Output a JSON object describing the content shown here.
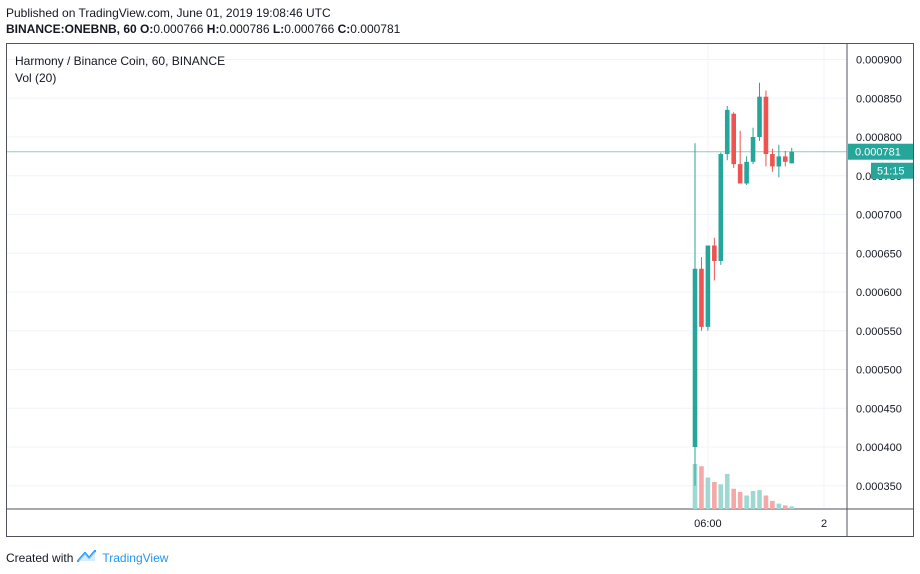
{
  "header": {
    "published": "Published on TradingView.com, June 01, 2019 19:08:46 UTC",
    "symbol": "BINANCE:ONEBNB, 60",
    "o_label": "O:",
    "o": "0.000766",
    "h_label": "H:",
    "h": "0.000786",
    "l_label": "L:",
    "l": "0.000766",
    "c_label": "C:",
    "c": "0.000781",
    "price": "0.000781"
  },
  "footer": {
    "created_with": "Created with",
    "brand": "TradingView"
  },
  "colors": {
    "up": "#26a69a",
    "down": "#ef5350",
    "vol_up": "#9fd8d2",
    "vol_down": "#f6a8a7",
    "grid": "#f0f3fa",
    "axis": "#50535e"
  },
  "chart_data": {
    "type": "candlestick",
    "title": "Harmony / Binance Coin, 60, BINANCE",
    "volume_label": "Vol (20)",
    "ylim": [
      0.00032,
      0.00092
    ],
    "y_ticks": [
      "0.000350",
      "0.000400",
      "0.000450",
      "0.000500",
      "0.000550",
      "0.000600",
      "0.000650",
      "0.000700",
      "0.000750",
      "0.000800",
      "0.000850",
      "0.000900"
    ],
    "x_ticks": [
      {
        "label": "06:00",
        "index": 2
      },
      {
        "label": "2",
        "index": 20
      }
    ],
    "last_price_label": "0.000781",
    "countdown_label": "51:15",
    "candles": [
      {
        "o": 0.0004,
        "h": 0.000792,
        "l": 0.00035,
        "c": 0.00063
      },
      {
        "o": 0.00063,
        "h": 0.000645,
        "l": 0.00055,
        "c": 0.000555
      },
      {
        "o": 0.000555,
        "h": 0.00066,
        "l": 0.00055,
        "c": 0.00066
      },
      {
        "o": 0.00066,
        "h": 0.00067,
        "l": 0.000615,
        "c": 0.00064
      },
      {
        "o": 0.00064,
        "h": 0.00078,
        "l": 0.000635,
        "c": 0.000778
      },
      {
        "o": 0.000778,
        "h": 0.00084,
        "l": 0.00077,
        "c": 0.000835
      },
      {
        "o": 0.00083,
        "h": 0.000832,
        "l": 0.00076,
        "c": 0.000765
      },
      {
        "o": 0.000765,
        "h": 0.000808,
        "l": 0.00074,
        "c": 0.00074
      },
      {
        "o": 0.00074,
        "h": 0.000775,
        "l": 0.000738,
        "c": 0.000768
      },
      {
        "o": 0.000768,
        "h": 0.000812,
        "l": 0.000765,
        "c": 0.0008
      },
      {
        "o": 0.0008,
        "h": 0.00087,
        "l": 0.000795,
        "c": 0.000852
      },
      {
        "o": 0.000852,
        "h": 0.00086,
        "l": 0.000762,
        "c": 0.000778
      },
      {
        "o": 0.000778,
        "h": 0.000785,
        "l": 0.000755,
        "c": 0.000762
      },
      {
        "o": 0.000762,
        "h": 0.00079,
        "l": 0.000748,
        "c": 0.000775
      },
      {
        "o": 0.000775,
        "h": 0.000782,
        "l": 0.000762,
        "c": 0.000768
      },
      {
        "o": 0.000766,
        "h": 0.000786,
        "l": 0.000766,
        "c": 0.000781
      }
    ],
    "volume": [
      100,
      95,
      70,
      60,
      55,
      78,
      45,
      38,
      30,
      40,
      42,
      30,
      18,
      12,
      8,
      6
    ]
  }
}
